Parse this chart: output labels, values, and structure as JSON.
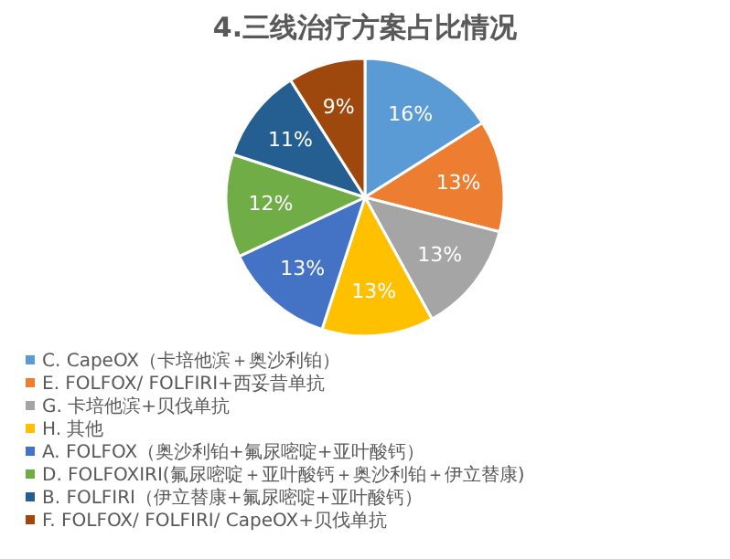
{
  "chart_data": {
    "type": "pie",
    "title": "4.三线治疗方案占比情况",
    "categories": [
      "C. CapeOX（卡培他滨＋奥沙利铂）",
      "E. FOLFOX/ FOLFIRI+西妥昔单抗",
      "G. 卡培他滨+贝伐单抗",
      "H. 其他",
      "A. FOLFOX（奥沙利铂+氟尿嘧啶+亚叶酸钙）",
      "D. FOLFOXIRI(氟尿嘧啶＋亚叶酸钙＋奥沙利铂＋伊立替康)",
      "B. FOLFIRI（伊立替康+氟尿嘧啶+亚叶酸钙）",
      "F. FOLFOX/ FOLFIRI/ CapeOX+贝伐单抗"
    ],
    "values": [
      16,
      13,
      13,
      13,
      13,
      12,
      11,
      9
    ],
    "value_labels": [
      "16%",
      "13%",
      "13%",
      "13%",
      "13%",
      "12%",
      "11%",
      "9%"
    ],
    "colors": [
      "#5b9bd5",
      "#ed7d31",
      "#a5a5a5",
      "#ffc000",
      "#4472c4",
      "#70ad47",
      "#255e91",
      "#9e480e"
    ],
    "legend": "bottom"
  }
}
